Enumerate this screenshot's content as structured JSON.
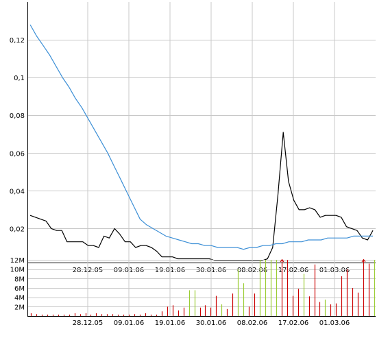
{
  "chart_data": [
    {
      "type": "line",
      "title": "",
      "xlabel": "",
      "ylabel": "",
      "ylim": [
        0.002,
        0.14
      ],
      "grid": true,
      "legend": "none",
      "x_tick_labels": [
        "28.12.05",
        "09.01.06",
        "19.01.06",
        "30.01.06",
        "08.02.06",
        "17.02.06",
        "01.03.06"
      ],
      "y_ticks": [
        0.02,
        0.04,
        0.06,
        0.08,
        0.1,
        0.12
      ],
      "y_tick_labels": [
        "0,02",
        "0,04",
        "0,06",
        "0,08",
        "0,1",
        "0,12"
      ],
      "series": [
        {
          "color": "#000000",
          "values": [
            0.027,
            0.026,
            0.025,
            0.024,
            0.02,
            0.019,
            0.019,
            0.013,
            0.013,
            0.013,
            0.013,
            0.011,
            0.011,
            0.01,
            0.016,
            0.015,
            0.02,
            0.017,
            0.013,
            0.013,
            0.01,
            0.011,
            0.011,
            0.01,
            0.008,
            0.005,
            0.005,
            0.005,
            0.004,
            0.004,
            0.004,
            0.004,
            0.004,
            0.004,
            0.004,
            0.003,
            0.003,
            0.003,
            0.003,
            0.003,
            0.003,
            0.003,
            0.003,
            0.003,
            0.003,
            0.004,
            0.01,
            0.038,
            0.071,
            0.045,
            0.035,
            0.03,
            0.03,
            0.031,
            0.03,
            0.026,
            0.027,
            0.027,
            0.027,
            0.026,
            0.021,
            0.02,
            0.019,
            0.015,
            0.014,
            0.019
          ]
        },
        {
          "color": "#3c8fd6",
          "values": [
            0.128,
            0.122,
            0.117,
            0.112,
            0.106,
            0.1,
            0.095,
            0.089,
            0.084,
            0.078,
            0.072,
            0.066,
            0.06,
            0.053,
            0.046,
            0.039,
            0.032,
            0.025,
            0.022,
            0.02,
            0.018,
            0.016,
            0.015,
            0.014,
            0.013,
            0.012,
            0.012,
            0.011,
            0.011,
            0.01,
            0.01,
            0.01,
            0.01,
            0.009,
            0.01,
            0.01,
            0.011,
            0.011,
            0.012,
            0.012,
            0.013,
            0.013,
            0.013,
            0.014,
            0.014,
            0.014,
            0.015,
            0.015,
            0.015,
            0.015,
            0.016,
            0.016,
            0.016,
            0.016
          ]
        }
      ]
    },
    {
      "type": "bar",
      "title": "",
      "xlabel": "",
      "ylabel": "",
      "ylim": [
        0,
        12
      ],
      "grid": true,
      "legend": "none",
      "x_tick_labels": [
        "28.12.05",
        "09.01.06",
        "19.01.06",
        "30.01.06",
        "08.02.06",
        "17.02.06",
        "01.03.06"
      ],
      "y_ticks": [
        2,
        4,
        6,
        8,
        10,
        12
      ],
      "y_tick_labels": [
        "2M",
        "4M",
        "6M",
        "8M",
        "10M",
        "12M"
      ],
      "up_color": "#9acd32",
      "down_color": "#cc0000",
      "bars": [
        {
          "value": 0.6,
          "dir": "down"
        },
        {
          "value": 0.4,
          "dir": "down"
        },
        {
          "value": 0.3,
          "dir": "down"
        },
        {
          "value": 0.3,
          "dir": "down"
        },
        {
          "value": 0.3,
          "dir": "down"
        },
        {
          "value": 0.3,
          "dir": "down"
        },
        {
          "value": 0.3,
          "dir": "down"
        },
        {
          "value": 0.3,
          "dir": "down"
        },
        {
          "value": 0.6,
          "dir": "down"
        },
        {
          "value": 0.4,
          "dir": "down"
        },
        {
          "value": 0.6,
          "dir": "down"
        },
        {
          "value": 0.3,
          "dir": "down"
        },
        {
          "value": 0.6,
          "dir": "down"
        },
        {
          "value": 0.4,
          "dir": "down"
        },
        {
          "value": 0.4,
          "dir": "down"
        },
        {
          "value": 0.4,
          "dir": "down"
        },
        {
          "value": 0.3,
          "dir": "down"
        },
        {
          "value": 0.3,
          "dir": "down"
        },
        {
          "value": 0.3,
          "dir": "down"
        },
        {
          "value": 0.4,
          "dir": "down"
        },
        {
          "value": 0.3,
          "dir": "down"
        },
        {
          "value": 0.6,
          "dir": "down"
        },
        {
          "value": 0.3,
          "dir": "down"
        },
        {
          "value": 0.3,
          "dir": "down"
        },
        {
          "value": 1.0,
          "dir": "down"
        },
        {
          "value": 2.0,
          "dir": "down"
        },
        {
          "value": 2.3,
          "dir": "down"
        },
        {
          "value": 1.2,
          "dir": "down"
        },
        {
          "value": 1.8,
          "dir": "down"
        },
        {
          "value": 5.5,
          "dir": "up"
        },
        {
          "value": 5.5,
          "dir": "up"
        },
        {
          "value": 1.8,
          "dir": "down"
        },
        {
          "value": 2.3,
          "dir": "down"
        },
        {
          "value": 1.8,
          "dir": "down"
        },
        {
          "value": 4.3,
          "dir": "down"
        },
        {
          "value": 2.5,
          "dir": "up"
        },
        {
          "value": 1.5,
          "dir": "down"
        },
        {
          "value": 4.8,
          "dir": "down"
        },
        {
          "value": 10.0,
          "dir": "up"
        },
        {
          "value": 7.0,
          "dir": "up"
        },
        {
          "value": 2.0,
          "dir": "down"
        },
        {
          "value": 4.8,
          "dir": "down"
        },
        {
          "value": 12.0,
          "dir": "up"
        },
        {
          "value": 12.0,
          "dir": "up"
        },
        {
          "value": 12.0,
          "dir": "up"
        },
        {
          "value": 12.0,
          "dir": "up"
        },
        {
          "value": 12.0,
          "dir": "down",
          "clipped": true
        },
        {
          "value": 12.0,
          "dir": "down"
        },
        {
          "value": 4.3,
          "dir": "down"
        },
        {
          "value": 5.8,
          "dir": "down"
        },
        {
          "value": 9.0,
          "dir": "up"
        },
        {
          "value": 4.2,
          "dir": "down"
        },
        {
          "value": 11.0,
          "dir": "down"
        },
        {
          "value": 3.0,
          "dir": "down"
        },
        {
          "value": 3.5,
          "dir": "up"
        },
        {
          "value": 2.5,
          "dir": "down"
        },
        {
          "value": 2.7,
          "dir": "down"
        },
        {
          "value": 8.5,
          "dir": "down"
        },
        {
          "value": 10.0,
          "dir": "down"
        },
        {
          "value": 6.0,
          "dir": "down"
        },
        {
          "value": 5.0,
          "dir": "down"
        },
        {
          "value": 12.0,
          "dir": "down",
          "clipped": true
        },
        {
          "value": 11.2,
          "dir": "down"
        },
        {
          "value": 12.0,
          "dir": "up"
        }
      ]
    }
  ]
}
